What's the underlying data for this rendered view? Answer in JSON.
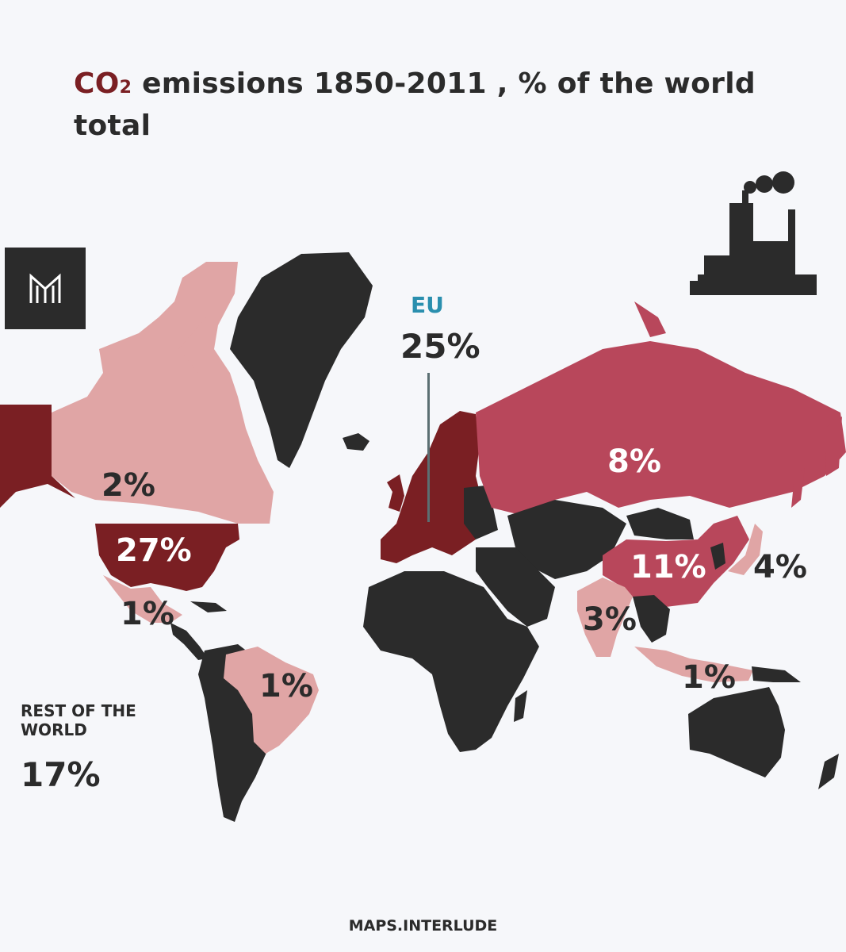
{
  "title": {
    "co2": "CO",
    "co2_sub": "2",
    "rest": "emissions 1850-2011 , % of the world total"
  },
  "logo_text": "M",
  "eu": {
    "name": "EU",
    "value": "25%"
  },
  "labels": {
    "canada": "2%",
    "usa": "27%",
    "mexico": "1%",
    "russia": "8%",
    "china": "11%",
    "japan": "4%",
    "india": "3%",
    "indonesia": "1%",
    "brazil": "1%"
  },
  "rest_of_world": {
    "title": "REST OF THE WORLD",
    "value": "17%"
  },
  "footer": "MAPS.INTERLUDE",
  "colors": {
    "background": "#f6f7fa",
    "dark_land": "#2b2b2b",
    "share_large": "#7a1f23",
    "share_medium": "#b8475b",
    "share_small": "#e0a5a5",
    "eu_label": "#2a8fae"
  }
}
